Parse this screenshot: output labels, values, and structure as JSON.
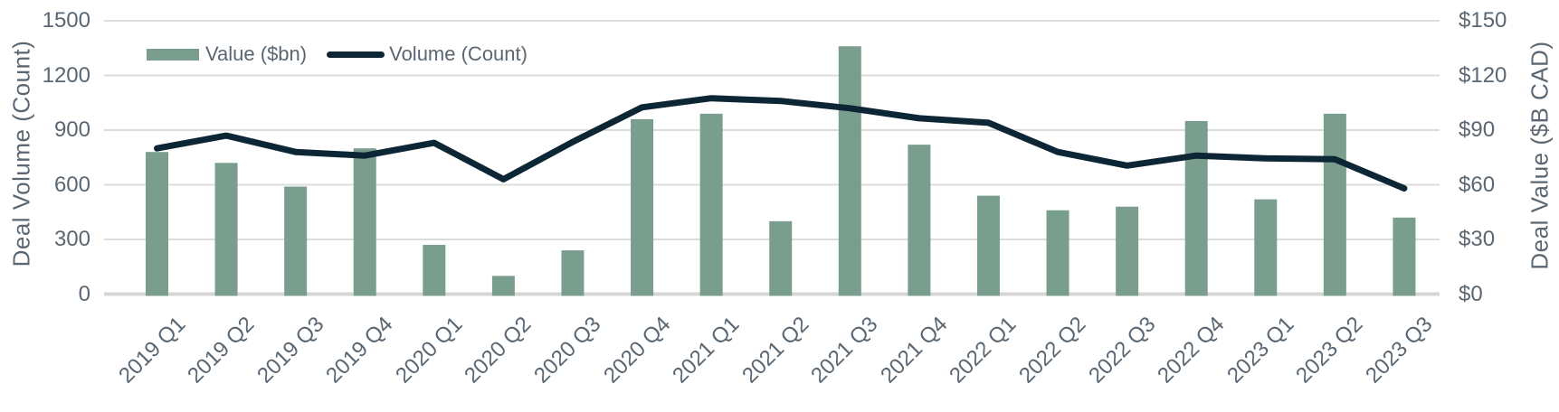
{
  "chart": {
    "left_axis_title": "Deal Volume (Count)",
    "right_axis_title": "Deal Value ($B CAD)"
  },
  "chart_data": {
    "type": "bar+line",
    "title": "",
    "categories": [
      "2019 Q1",
      "2019 Q2",
      "2019 Q3",
      "2019 Q4",
      "2020 Q1",
      "2020 Q2",
      "2020 Q3",
      "2020 Q4",
      "2021 Q1",
      "2021 Q2",
      "2021 Q3",
      "2021 Q4",
      "2022 Q1",
      "2022 Q2",
      "2022 Q3",
      "2022 Q4",
      "2023 Q1",
      "2023 Q2",
      "2023 Q3"
    ],
    "series": [
      {
        "name": "Value ($bn)",
        "type": "bar",
        "axis": "right",
        "values": [
          78,
          72,
          59,
          80,
          27,
          10,
          24,
          96,
          99,
          40,
          136,
          82,
          54,
          46,
          48,
          95,
          52,
          99,
          42
        ]
      },
      {
        "name": "Volume (Count)",
        "type": "line",
        "axis": "left",
        "values": [
          800,
          870,
          780,
          760,
          830,
          630,
          835,
          1025,
          1075,
          1060,
          1020,
          965,
          940,
          780,
          705,
          760,
          745,
          740,
          580
        ]
      }
    ],
    "left_axis": {
      "label": "Deal Volume (Count)",
      "min": 0,
      "max": 1500,
      "ticks": [
        "0",
        "300",
        "600",
        "900",
        "1200",
        "1500"
      ]
    },
    "right_axis": {
      "label": "Deal Value ($B CAD)",
      "min": 0,
      "max": 150,
      "ticks": [
        "$0",
        "$30",
        "$60",
        "$90",
        "$120",
        "$150"
      ]
    },
    "legend_position": "top-left",
    "grid": true,
    "colors": {
      "bar": "#7a9e8d",
      "line": "#0d2636",
      "grid": "#dcdcdc",
      "axis_line": "#d6d6d6",
      "text": "#5a6772"
    }
  }
}
